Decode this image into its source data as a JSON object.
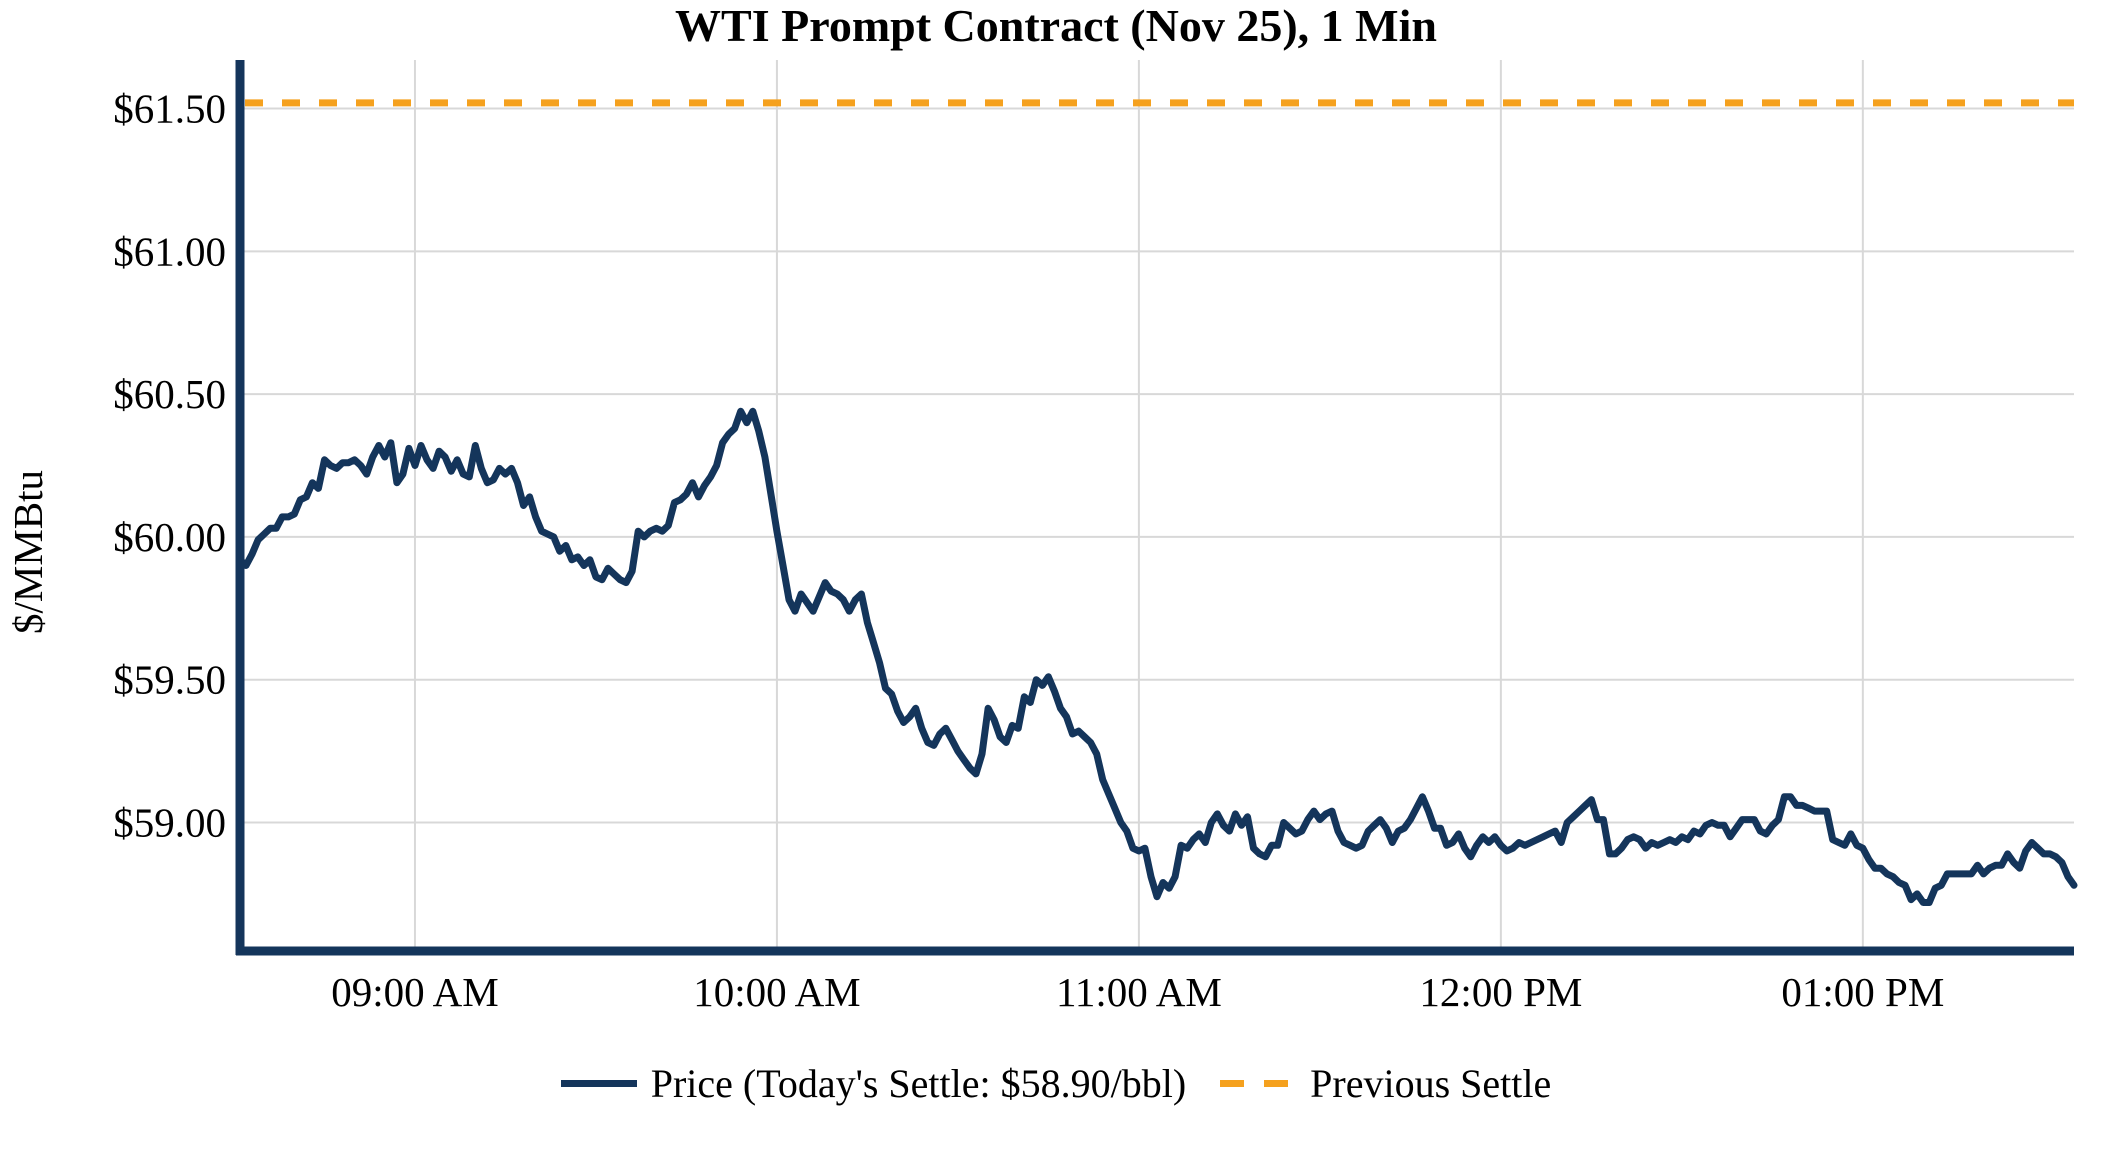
{
  "chart_data": {
    "type": "line",
    "title": "WTI Prompt Contract (Nov 25), 1 Min",
    "xlabel": "",
    "ylabel": "$/MMBtu",
    "grid": true,
    "x_axis": {
      "unit": "minutes after 08:30 AM",
      "range": [
        1,
        305
      ],
      "ticks": [
        {
          "t": 30,
          "label": "09:00 AM"
        },
        {
          "t": 90,
          "label": "10:00 AM"
        },
        {
          "t": 150,
          "label": "11:00 AM"
        },
        {
          "t": 210,
          "label": "12:00 PM"
        },
        {
          "t": 270,
          "label": "01:00 PM"
        }
      ]
    },
    "y_axis": {
      "range": [
        58.55,
        61.67
      ],
      "ticks": [
        {
          "v": 61.5,
          "label": "$61.50"
        },
        {
          "v": 61.0,
          "label": "$61.00"
        },
        {
          "v": 60.5,
          "label": "$60.50"
        },
        {
          "v": 60.0,
          "label": "$60.00"
        },
        {
          "v": 59.5,
          "label": "$59.50"
        },
        {
          "v": 59.0,
          "label": "$59.00"
        }
      ]
    },
    "legend": {
      "position": "bottom-center",
      "items": [
        {
          "label": "Price (Today's Settle: $58.90/bbl)",
          "style": "solid",
          "color": "#14355B"
        },
        {
          "label": "Previous Settle",
          "style": "dashed",
          "color": "#F5A11E"
        }
      ]
    },
    "series": [
      {
        "name": "Price",
        "type": "line",
        "color": "#14355B",
        "t_start": 1,
        "t_step": 1,
        "values": [
          59.92,
          59.9,
          59.94,
          59.99,
          60.01,
          60.03,
          60.03,
          60.07,
          60.07,
          60.08,
          60.13,
          60.14,
          60.19,
          60.17,
          60.27,
          60.25,
          60.24,
          60.26,
          60.26,
          60.27,
          60.25,
          60.22,
          60.28,
          60.32,
          60.28,
          60.33,
          60.19,
          60.22,
          60.31,
          60.25,
          60.32,
          60.27,
          60.24,
          60.3,
          60.28,
          60.23,
          60.27,
          60.22,
          60.21,
          60.32,
          60.24,
          60.19,
          60.2,
          60.24,
          60.22,
          60.24,
          60.19,
          60.11,
          60.14,
          60.07,
          60.02,
          60.01,
          60.0,
          59.95,
          59.97,
          59.92,
          59.93,
          59.9,
          59.92,
          59.86,
          59.85,
          59.89,
          59.87,
          59.85,
          59.84,
          59.88,
          60.02,
          60.0,
          60.02,
          60.03,
          60.02,
          60.04,
          60.12,
          60.13,
          60.15,
          60.19,
          60.14,
          60.18,
          60.21,
          60.25,
          60.33,
          60.36,
          60.38,
          60.44,
          60.4,
          60.44,
          60.37,
          60.28,
          60.15,
          60.02,
          59.9,
          59.78,
          59.74,
          59.8,
          59.77,
          59.74,
          59.79,
          59.84,
          59.81,
          59.8,
          59.78,
          59.74,
          59.78,
          59.8,
          59.7,
          59.63,
          59.56,
          59.47,
          59.45,
          59.39,
          59.35,
          59.37,
          59.4,
          59.33,
          59.28,
          59.27,
          59.31,
          59.33,
          59.29,
          59.25,
          59.22,
          59.19,
          59.17,
          59.24,
          59.4,
          59.36,
          59.3,
          59.28,
          59.34,
          59.33,
          59.44,
          59.42,
          59.5,
          59.48,
          59.51,
          59.46,
          59.4,
          59.37,
          59.31,
          59.32,
          59.3,
          59.28,
          59.24,
          59.15,
          59.1,
          59.05,
          59.0,
          58.97,
          58.91,
          58.9,
          58.91,
          58.81,
          58.74,
          58.79,
          58.77,
          58.81,
          58.92,
          58.91,
          58.94,
          58.96,
          58.93,
          59.0,
          59.03,
          58.99,
          58.97,
          59.03,
          58.99,
          59.02,
          58.91,
          58.89,
          58.88,
          58.92,
          58.92,
          59.0,
          58.98,
          58.96,
          58.97,
          59.01,
          59.04,
          59.01,
          59.03,
          59.04,
          58.97,
          58.93,
          58.92,
          58.91,
          58.92,
          58.97,
          58.99,
          59.01,
          58.98,
          58.93,
          58.97,
          58.98,
          59.01,
          59.05,
          59.09,
          59.04,
          58.98,
          58.98,
          58.92,
          58.93,
          58.96,
          58.91,
          58.88,
          58.92,
          58.95,
          58.93,
          58.95,
          58.92,
          58.9,
          58.91,
          58.93,
          58.92,
          58.93,
          58.94,
          58.95,
          58.96,
          58.97,
          58.93,
          59.0,
          59.02,
          59.04,
          59.06,
          59.08,
          59.01,
          59.01,
          58.89,
          58.89,
          58.91,
          58.94,
          58.95,
          58.94,
          58.91,
          58.93,
          58.92,
          58.93,
          58.94,
          58.93,
          58.95,
          58.94,
          58.97,
          58.96,
          58.99,
          59.0,
          58.99,
          58.99,
          58.95,
          58.98,
          59.01,
          59.01,
          59.01,
          58.97,
          58.96,
          58.99,
          59.01,
          59.09,
          59.09,
          59.06,
          59.06,
          59.05,
          59.04,
          59.04,
          59.04,
          58.94,
          58.93,
          58.92,
          58.96,
          58.92,
          58.91,
          58.87,
          58.84,
          58.84,
          58.82,
          58.81,
          58.79,
          58.78,
          58.73,
          58.75,
          58.72,
          58.72,
          58.77,
          58.78,
          58.82,
          58.82,
          58.82,
          58.82,
          58.82,
          58.85,
          58.82,
          58.84,
          58.85,
          58.85,
          58.89,
          58.86,
          58.84,
          58.9,
          58.93,
          58.91,
          58.89,
          58.89,
          58.88,
          58.86,
          58.81,
          58.78
        ]
      },
      {
        "name": "Previous Settle",
        "type": "hline",
        "style": "dashed",
        "color": "#F5A11E",
        "value": 61.52
      }
    ],
    "colors": {
      "grid": "#D8D8D8",
      "axis": "#14355B",
      "text": "#000000",
      "background": "#FFFFFF"
    }
  }
}
